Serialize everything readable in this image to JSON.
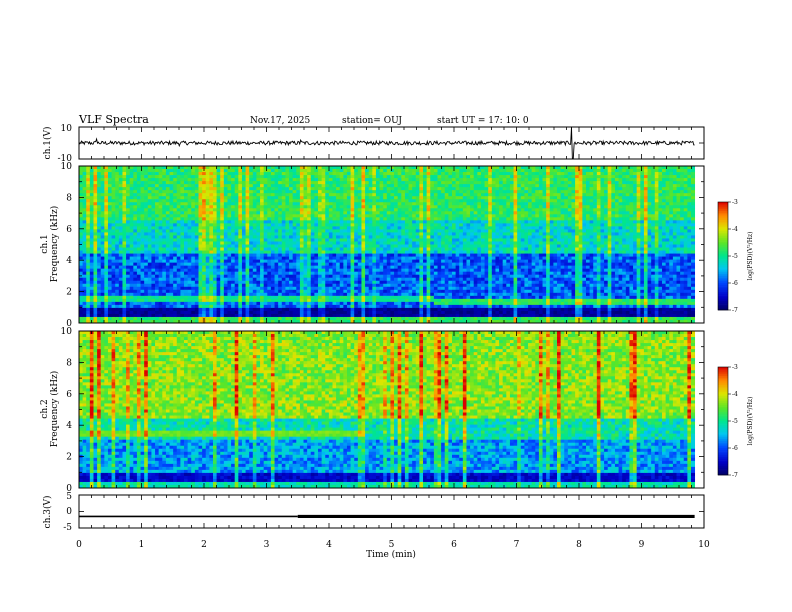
{
  "header": {
    "title": "VLF Spectra",
    "date": "Nov.17, 2025",
    "station": "station= OUJ",
    "start_ut": "start  UT =   17: 10: 0"
  },
  "chart_data": [
    {
      "type": "line",
      "name": "ch1-waveform",
      "ylabel": "ch.1(V)",
      "ylim": [
        -10,
        10
      ],
      "yticks": [
        "10",
        "-10"
      ],
      "baseline": 0,
      "noise_amplitude": 1.2,
      "spikes": [
        {
          "t": 0.28,
          "v": 2.5
        },
        {
          "t": 1.6,
          "v": -1.8
        },
        {
          "t": 3.55,
          "v": 1.8
        },
        {
          "t": 7.88,
          "v": 10
        },
        {
          "t": 7.9,
          "v": -10
        }
      ]
    },
    {
      "type": "heatmap",
      "name": "ch1-spectrogram",
      "ylabel": "ch.1 Frequency (kHz)",
      "ylim": [
        0,
        10
      ],
      "yticks": [
        "0",
        "2",
        "4",
        "6",
        "8",
        "10"
      ],
      "colorbar_label": "log(PSD)(V²/Hz)",
      "colorbar_ticks": [
        "-3",
        "-4",
        "-5",
        "-6",
        "-7"
      ],
      "color_range": [
        -7,
        -3
      ],
      "quiet_band_khz": [
        0.5,
        4.5
      ],
      "band_transition_min": 5.7
    },
    {
      "type": "heatmap",
      "name": "ch2-spectrogram",
      "ylabel": "ch.2 Frequency (kHz)",
      "ylim": [
        0,
        10
      ],
      "yticks": [
        "0",
        "2",
        "4",
        "6",
        "8",
        "10"
      ],
      "colorbar_label": "log(PSD)(V²/Hz)",
      "colorbar_ticks": [
        "-3",
        "-4",
        "-5",
        "-6",
        "-7"
      ],
      "color_range": [
        -7,
        -3
      ],
      "band_line_khz": 3.5,
      "band_line_end_min": 4.55
    },
    {
      "type": "line",
      "name": "ch3-trigger",
      "ylabel": "ch.3(V)",
      "ylim": [
        -5,
        5
      ],
      "yticks": [
        "5",
        "0",
        "-5"
      ],
      "level": -1.5,
      "thick_from_min": 3.5
    }
  ],
  "x_axis": {
    "label": "Time (min)",
    "xlim": [
      0,
      10
    ],
    "ticks": [
      "0",
      "1",
      "2",
      "3",
      "4",
      "5",
      "6",
      "7",
      "8",
      "9",
      "10"
    ],
    "data_end_min": 9.85
  }
}
